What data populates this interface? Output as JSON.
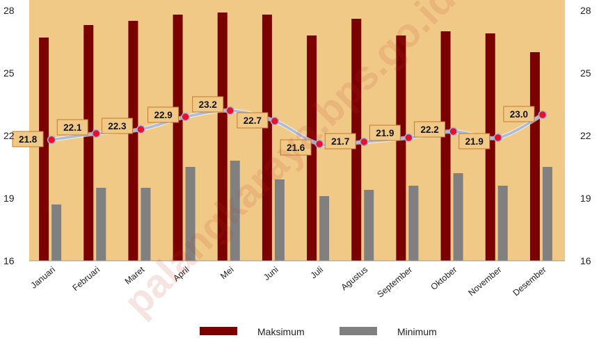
{
  "chart_data": {
    "type": "bar",
    "categories": [
      "Januari",
      "Februari",
      "Maret",
      "April",
      "Mei",
      "Juni",
      "Juli",
      "Agustus",
      "September",
      "Oktober",
      "November",
      "Desember"
    ],
    "ylim": [
      16,
      28
    ],
    "yticks": [
      16,
      19,
      22,
      25,
      28
    ],
    "grid": false,
    "legend_position": "bottom",
    "series": [
      {
        "name": "Maksimum",
        "type": "bar",
        "color": "#7b0000",
        "values": [
          26.7,
          27.3,
          27.5,
          27.8,
          27.9,
          27.8,
          26.8,
          27.6,
          26.8,
          27.0,
          26.9,
          26.0
        ]
      },
      {
        "name": "Minimum",
        "type": "bar",
        "color": "#808080",
        "values": [
          18.7,
          19.5,
          19.5,
          20.5,
          20.8,
          19.9,
          19.1,
          19.4,
          19.6,
          20.2,
          19.6,
          20.5
        ]
      },
      {
        "type": "line",
        "color": "#aabbe0",
        "values": [
          21.8,
          22.1,
          22.3,
          22.9,
          23.2,
          22.7,
          21.6,
          21.7,
          21.9,
          22.2,
          21.9,
          23.0
        ],
        "labels": [
          "21.8",
          "22.1",
          "22.3",
          "22.9",
          "23.2",
          "22.7",
          "21.6",
          "21.7",
          "21.9",
          "22.2",
          "21.9",
          "23.0"
        ]
      }
    ],
    "background_color": "#f0c987",
    "watermark": "palangkaraya.bps.go.id"
  }
}
